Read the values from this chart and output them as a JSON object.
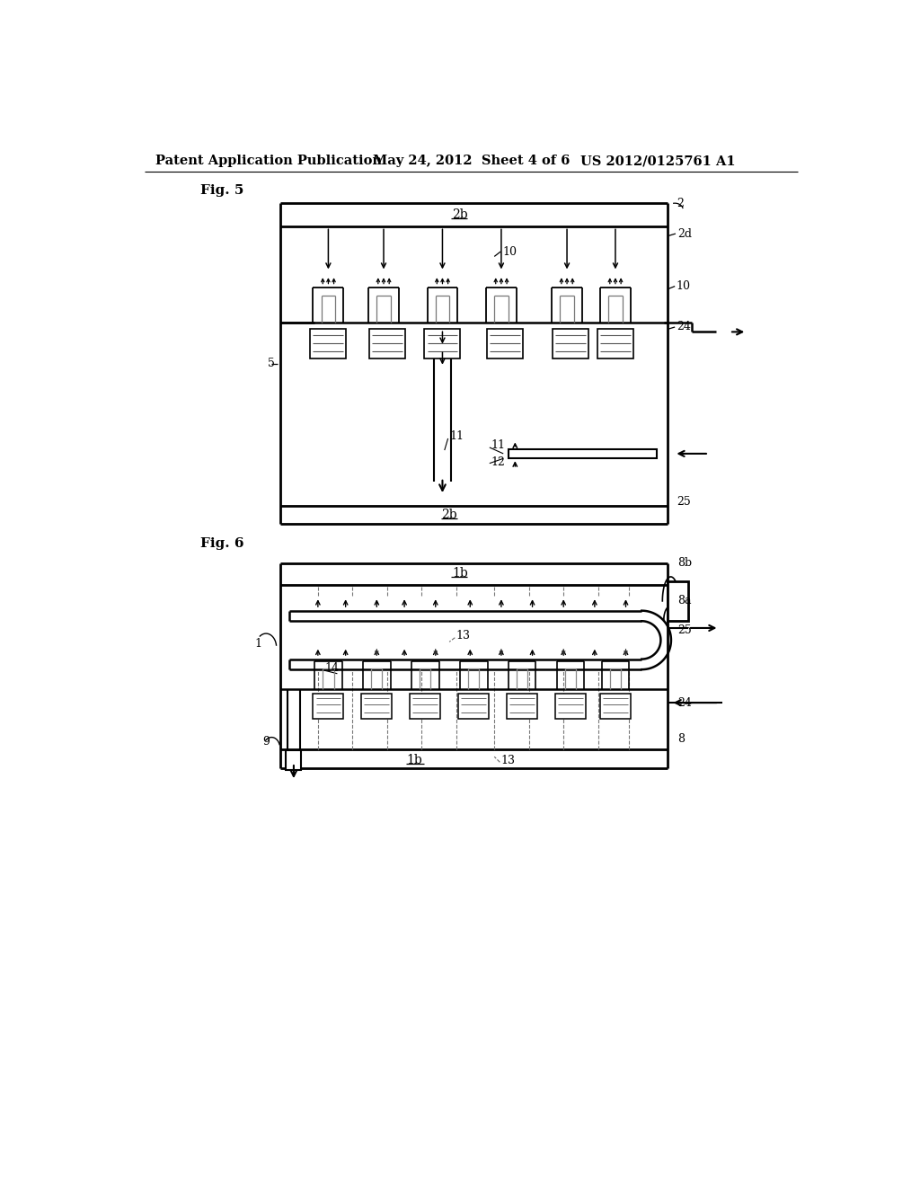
{
  "bg_color": "#ffffff",
  "line_color": "#000000",
  "dashed_color": "#666666",
  "header_text": "Patent Application Publication",
  "header_date": "May 24, 2012  Sheet 4 of 6",
  "header_patent": "US 2012/0125761 A1"
}
